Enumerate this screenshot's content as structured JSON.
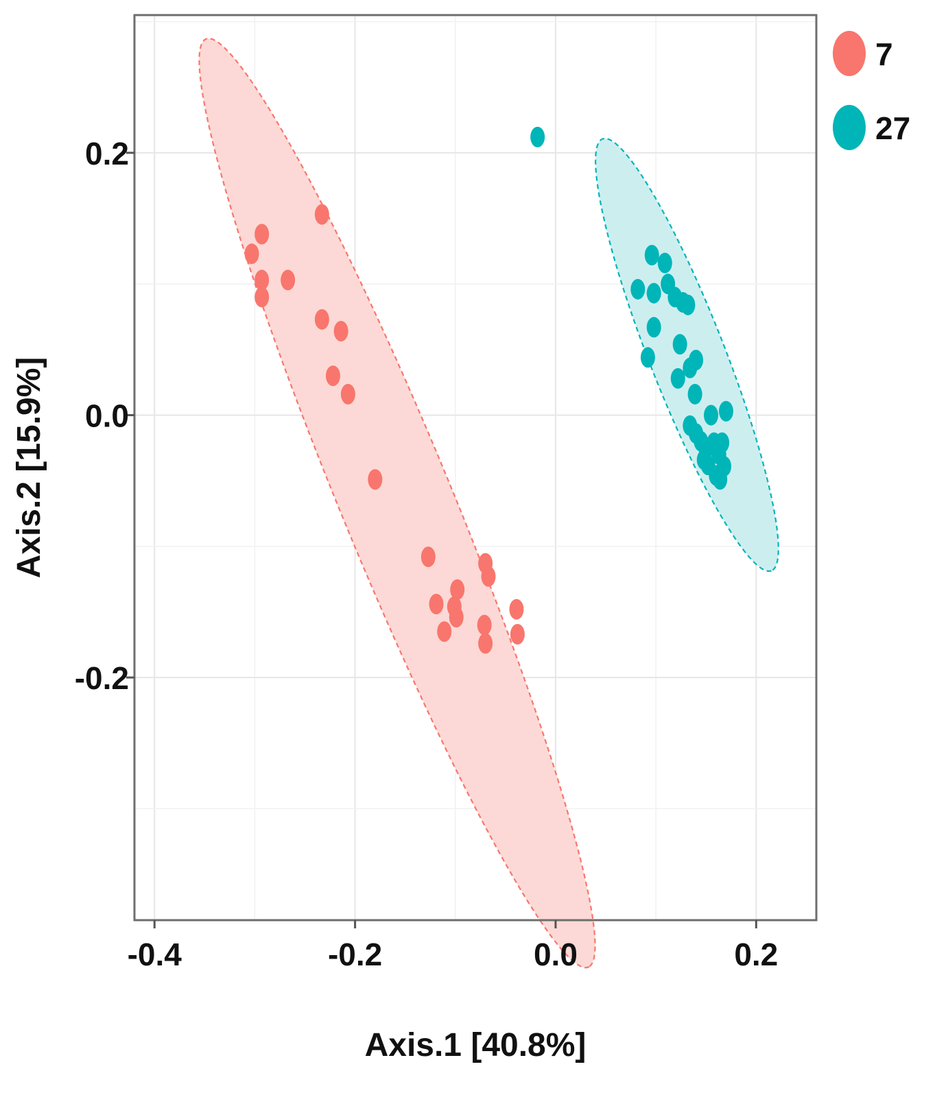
{
  "chart_data": {
    "type": "scatter",
    "title": "",
    "xlabel": "Axis.1 [40.8%]",
    "ylabel": "Axis.2 [15.9%]",
    "xlim": [
      -0.42,
      0.26
    ],
    "ylim": [
      -0.385,
      0.305
    ],
    "xticks": [
      -0.4,
      -0.2,
      0.0,
      0.2
    ],
    "xtick_labels": [
      "-0.4",
      "-0.2",
      "0.0",
      "0.2"
    ],
    "yticks": [
      -0.2,
      0.0,
      0.2
    ],
    "ytick_labels": [
      "-0.2",
      "0.0",
      "0.2"
    ],
    "grid": true,
    "legend_position": "top-right",
    "series": [
      {
        "name": "7",
        "color": "#F8766D",
        "ellipse_fill": "#FCD9D6",
        "ellipse": {
          "center": [
            -0.158,
            -0.067
          ],
          "semi_major": 0.402,
          "semi_minor": 0.053,
          "angle_deg": -61.5
        },
        "points": [
          {
            "x": -0.233,
            "y": 0.153
          },
          {
            "x": -0.293,
            "y": 0.138
          },
          {
            "x": -0.303,
            "y": 0.123
          },
          {
            "x": -0.293,
            "y": 0.103
          },
          {
            "x": -0.293,
            "y": 0.09
          },
          {
            "x": -0.267,
            "y": 0.103
          },
          {
            "x": -0.233,
            "y": 0.073
          },
          {
            "x": -0.214,
            "y": 0.064
          },
          {
            "x": -0.222,
            "y": 0.03
          },
          {
            "x": -0.207,
            "y": 0.016
          },
          {
            "x": -0.18,
            "y": -0.049
          },
          {
            "x": -0.127,
            "y": -0.108
          },
          {
            "x": -0.098,
            "y": -0.133
          },
          {
            "x": -0.119,
            "y": -0.144
          },
          {
            "x": -0.101,
            "y": -0.146
          },
          {
            "x": -0.099,
            "y": -0.154
          },
          {
            "x": -0.111,
            "y": -0.165
          },
          {
            "x": -0.07,
            "y": -0.113
          },
          {
            "x": -0.067,
            "y": -0.123
          },
          {
            "x": -0.039,
            "y": -0.148
          },
          {
            "x": -0.038,
            "y": -0.167
          },
          {
            "x": -0.071,
            "y": -0.16
          },
          {
            "x": -0.07,
            "y": -0.174
          }
        ]
      },
      {
        "name": "27",
        "color": "#00B5B8",
        "ellipse_fill": "#CDEEEF",
        "ellipse": {
          "center": [
            0.131,
            0.046
          ],
          "semi_major": 0.185,
          "semi_minor": 0.036,
          "angle_deg": -62.5
        },
        "points": [
          {
            "x": -0.018,
            "y": 0.212
          },
          {
            "x": 0.096,
            "y": 0.122
          },
          {
            "x": 0.109,
            "y": 0.116
          },
          {
            "x": 0.082,
            "y": 0.096
          },
          {
            "x": 0.098,
            "y": 0.093
          },
          {
            "x": 0.112,
            "y": 0.1
          },
          {
            "x": 0.119,
            "y": 0.09
          },
          {
            "x": 0.127,
            "y": 0.086
          },
          {
            "x": 0.132,
            "y": 0.084
          },
          {
            "x": 0.098,
            "y": 0.067
          },
          {
            "x": 0.124,
            "y": 0.054
          },
          {
            "x": 0.092,
            "y": 0.044
          },
          {
            "x": 0.14,
            "y": 0.042
          },
          {
            "x": 0.134,
            "y": 0.036
          },
          {
            "x": 0.122,
            "y": 0.028
          },
          {
            "x": 0.139,
            "y": 0.016
          },
          {
            "x": 0.155,
            "y": 0.0
          },
          {
            "x": 0.17,
            "y": 0.003
          },
          {
            "x": 0.134,
            "y": -0.008
          },
          {
            "x": 0.14,
            "y": -0.014
          },
          {
            "x": 0.145,
            "y": -0.02
          },
          {
            "x": 0.15,
            "y": -0.026
          },
          {
            "x": 0.158,
            "y": -0.021
          },
          {
            "x": 0.166,
            "y": -0.021
          },
          {
            "x": 0.148,
            "y": -0.034
          },
          {
            "x": 0.163,
            "y": -0.03
          },
          {
            "x": 0.152,
            "y": -0.038
          },
          {
            "x": 0.168,
            "y": -0.039
          },
          {
            "x": 0.16,
            "y": -0.046
          },
          {
            "x": 0.164,
            "y": -0.049
          }
        ]
      }
    ]
  }
}
